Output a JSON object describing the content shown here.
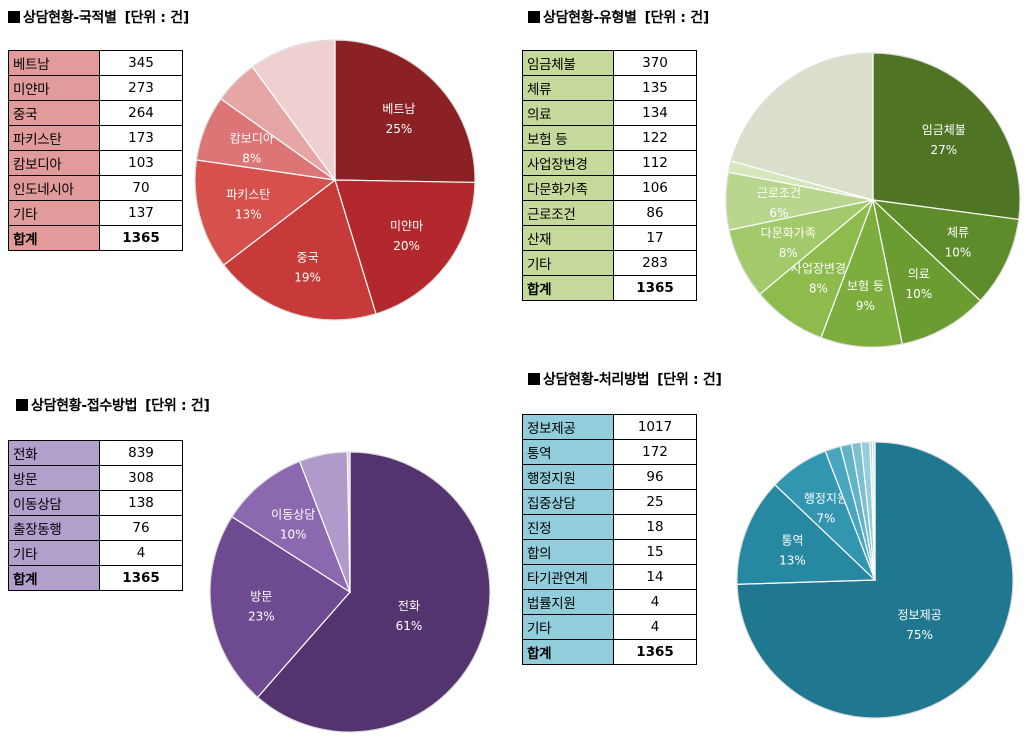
{
  "chart_data": [
    {
      "id": "nationality",
      "type": "pie",
      "title": "상담현황-국적별",
      "unit": "[단위 : 건]",
      "label_bg": "#e29b9b",
      "rows": [
        {
          "label": "베트남",
          "value": "345"
        },
        {
          "label": "미얀마",
          "value": "273"
        },
        {
          "label": "중국",
          "value": "264"
        },
        {
          "label": "파키스탄",
          "value": "173"
        },
        {
          "label": "캄보디아",
          "value": "103"
        },
        {
          "label": "인도네시아",
          "value": "70"
        },
        {
          "label": "기타",
          "value": "137"
        }
      ],
      "total": {
        "label": "합계",
        "value": "1365"
      },
      "slices": [
        {
          "name": "베트남",
          "value": 345,
          "pct": "25%",
          "color": "#8b2125",
          "labeled": true
        },
        {
          "name": "미얀마",
          "value": 273,
          "pct": "20%",
          "color": "#b3282c",
          "labeled": true
        },
        {
          "name": "중국",
          "value": 264,
          "pct": "19%",
          "color": "#c63a3a",
          "labeled": true
        },
        {
          "name": "파키스탄",
          "value": 173,
          "pct": "13%",
          "color": "#d6504c",
          "labeled": true
        },
        {
          "name": "캄보디아",
          "value": 103,
          "pct": "8%",
          "color": "#db7576",
          "labeled": true
        },
        {
          "name": "인도네시아",
          "value": 70,
          "pct": "",
          "color": "#e6a6a6",
          "labeled": false
        },
        {
          "name": "기타",
          "value": 137,
          "pct": "",
          "color": "#eed0d0",
          "labeled": false
        }
      ]
    },
    {
      "id": "type",
      "type": "pie",
      "title": "상담현황-유형별",
      "unit": "[단위 : 건]",
      "label_bg": "#c5d99b",
      "rows": [
        {
          "label": "임금체불",
          "value": "370"
        },
        {
          "label": "체류",
          "value": "135"
        },
        {
          "label": "의료",
          "value": "134"
        },
        {
          "label": "보험 등",
          "value": "122"
        },
        {
          "label": "사업장변경",
          "value": "112"
        },
        {
          "label": "다문화가족",
          "value": "106"
        },
        {
          "label": "근로조건",
          "value": "86"
        },
        {
          "label": "산재",
          "value": "17"
        },
        {
          "label": "기타",
          "value": "283"
        }
      ],
      "total": {
        "label": "합계",
        "value": "1365"
      },
      "slices": [
        {
          "name": "임금체불",
          "value": 370,
          "pct": "27%",
          "color": "#4f7424",
          "labeled": true
        },
        {
          "name": "체류",
          "value": 135,
          "pct": "10%",
          "color": "#5e8c2b",
          "labeled": true
        },
        {
          "name": "의료",
          "value": 134,
          "pct": "10%",
          "color": "#6b9c32",
          "labeled": true
        },
        {
          "name": "보험 등",
          "value": 122,
          "pct": "9%",
          "color": "#7cad3d",
          "labeled": true
        },
        {
          "name": "사업장변경",
          "value": 112,
          "pct": "8%",
          "color": "#8dbb4c",
          "labeled": true
        },
        {
          "name": "다문화가족",
          "value": 106,
          "pct": "8%",
          "color": "#a2c96a",
          "labeled": true
        },
        {
          "name": "근로조건",
          "value": 86,
          "pct": "6%",
          "color": "#b8d68d",
          "labeled": true
        },
        {
          "name": "산재",
          "value": 17,
          "pct": "",
          "color": "#d6e6bd",
          "labeled": false
        },
        {
          "name": "기타",
          "value": 283,
          "pct": "",
          "color": "#d9dfca",
          "labeled": false
        }
      ]
    },
    {
      "id": "method",
      "type": "pie",
      "title": "상담현황-접수방법",
      "unit": "[단위 : 건]",
      "label_bg": "#b1a0cc",
      "rows": [
        {
          "label": "전화",
          "value": "839"
        },
        {
          "label": "방문",
          "value": "308"
        },
        {
          "label": "이동상담",
          "value": "138"
        },
        {
          "label": "출장동행",
          "value": "76"
        },
        {
          "label": "기타",
          "value": "4"
        }
      ],
      "total": {
        "label": "합계",
        "value": "1365"
      },
      "slices": [
        {
          "name": "전화",
          "value": 839,
          "pct": "61%",
          "color": "#54346f",
          "labeled": true
        },
        {
          "name": "방문",
          "value": 308,
          "pct": "23%",
          "color": "#6e4a90",
          "labeled": true
        },
        {
          "name": "이동상담",
          "value": 138,
          "pct": "10%",
          "color": "#8c68b0",
          "labeled": true
        },
        {
          "name": "출장동행",
          "value": 76,
          "pct": "",
          "color": "#b09ac9",
          "labeled": false
        },
        {
          "name": "기타",
          "value": 4,
          "pct": "",
          "color": "#d0c4e0",
          "labeled": false
        }
      ]
    },
    {
      "id": "handling",
      "type": "pie",
      "title": "상담현황-처리방법",
      "unit": "[단위 : 건]",
      "label_bg": "#92cddc",
      "rows": [
        {
          "label": "정보제공",
          "value": "1017"
        },
        {
          "label": "통역",
          "value": "172"
        },
        {
          "label": "행정지원",
          "value": "96"
        },
        {
          "label": "집중상담",
          "value": "25"
        },
        {
          "label": "진정",
          "value": "18"
        },
        {
          "label": "합의",
          "value": "15"
        },
        {
          "label": "타기관연계",
          "value": "14"
        },
        {
          "label": "법률지원",
          "value": "4"
        },
        {
          "label": "기타",
          "value": "4"
        }
      ],
      "total": {
        "label": "합계",
        "value": "1365"
      },
      "slices": [
        {
          "name": "정보제공",
          "value": 1017,
          "pct": "75%",
          "color": "#1f7890",
          "labeled": true
        },
        {
          "name": "통역",
          "value": 172,
          "pct": "13%",
          "color": "#2788a2",
          "labeled": true
        },
        {
          "name": "행정지원",
          "value": 96,
          "pct": "7%",
          "color": "#3296b0",
          "labeled": true
        },
        {
          "name": "집중상담",
          "value": 25,
          "pct": "",
          "color": "#4aa6be",
          "labeled": false
        },
        {
          "name": "진정",
          "value": 18,
          "pct": "",
          "color": "#62b3c8",
          "labeled": false
        },
        {
          "name": "합의",
          "value": 15,
          "pct": "",
          "color": "#7cc0d1",
          "labeled": false
        },
        {
          "name": "타기관연계",
          "value": 14,
          "pct": "",
          "color": "#97cddb",
          "labeled": false
        },
        {
          "name": "법률지원",
          "value": 4,
          "pct": "",
          "color": "#b0d9e3",
          "labeled": false
        },
        {
          "name": "기타",
          "value": 4,
          "pct": "",
          "color": "#c8e4eb",
          "labeled": false
        }
      ]
    }
  ]
}
